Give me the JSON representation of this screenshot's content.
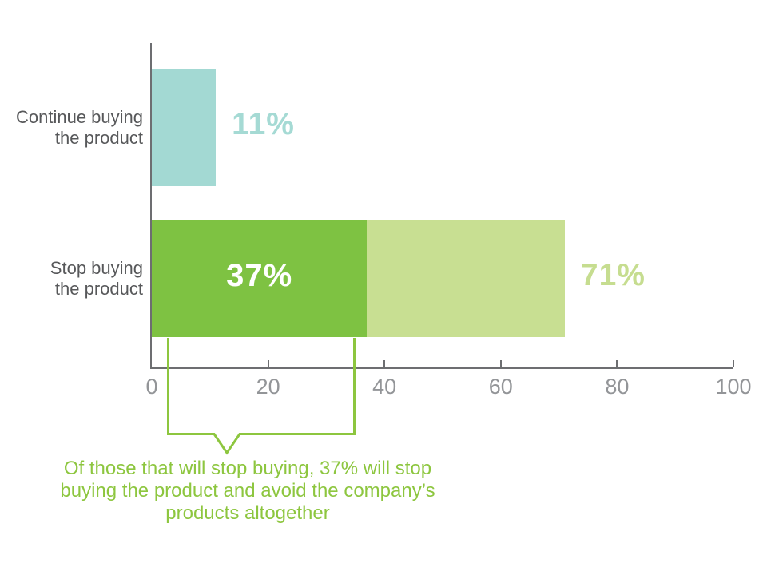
{
  "chart_data": {
    "type": "bar",
    "orientation": "horizontal",
    "title": "",
    "xlabel": "",
    "ylabel": "",
    "axis": {
      "min": 0,
      "max": 100,
      "ticks": [
        0,
        20,
        40,
        60,
        80,
        100
      ]
    },
    "grid": false,
    "legend": false,
    "categories": [
      "Continue buying the product",
      "Stop buying the product"
    ],
    "rows": [
      {
        "label_lines": [
          "Continue buying",
          "the product"
        ],
        "segments": [
          {
            "start": 0,
            "end": 11,
            "color_key": "teal"
          }
        ],
        "outside_label": {
          "text": "11%",
          "color_key": "teal_text"
        }
      },
      {
        "label_lines": [
          "Stop buying",
          "the product"
        ],
        "segments": [
          {
            "start": 0,
            "end": 37,
            "color_key": "green_dark",
            "inside_label": {
              "text": "37%",
              "color_key": "white"
            }
          },
          {
            "start": 37,
            "end": 71,
            "color_key": "green_light"
          }
        ],
        "outside_label": {
          "text": "71%",
          "color_key": "green_light_text"
        }
      }
    ],
    "annotation": {
      "lines": [
        "Of those that will stop buying, 37% will stop",
        "buying the product and avoid the company’s",
        "products altogether"
      ],
      "color_key": "green_line"
    }
  },
  "colors": {
    "teal": "#a3d9d3",
    "teal_text": "#a5dad4",
    "green_dark": "#7ec242",
    "green_light": "#c8df92",
    "green_light_text": "#c6dd90",
    "green_line": "#8dc63f",
    "label_gray": "#57585a",
    "axis_gray": "#6d6e71",
    "tick_label_gray": "#939598",
    "white": "#ffffff"
  }
}
